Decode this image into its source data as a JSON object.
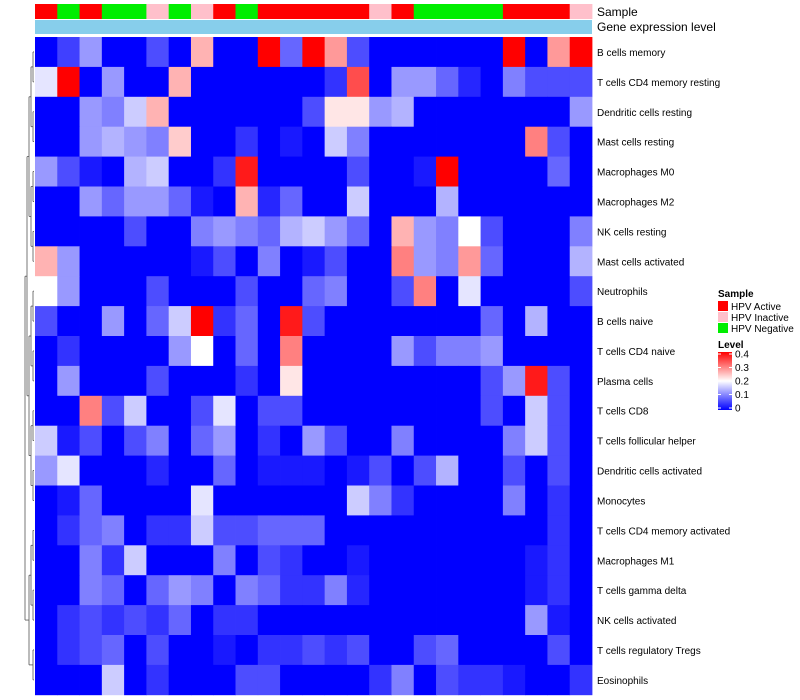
{
  "chart_data": {
    "type": "heatmap",
    "title": "",
    "annotation_tracks": [
      "Sample",
      "Gene expression level"
    ],
    "rows": [
      "B cells memory",
      "T cells CD4 memory resting",
      "Dendritic cells resting",
      "Mast cells resting",
      "Macrophages M0",
      "Macrophages M2",
      "NK cells resting",
      "Mast cells activated",
      "Neutrophils",
      "B cells naive",
      "T cells CD4 naive",
      "Plasma cells",
      "T cells CD8",
      "T cells follicular helper",
      "Dendritic cells activated",
      "Monocytes",
      "T cells CD4 memory activated",
      "Macrophages M1",
      "T cells gamma delta",
      "NK cells activated",
      "T cells regulatory  Tregs",
      "Eosinophils"
    ],
    "sample_groups": [
      "HPV Active",
      "HPV Negative",
      "HPV Active",
      "HPV Negative",
      "HPV Negative",
      "HPV Inactive",
      "HPV Negative",
      "HPV Inactive",
      "HPV Active",
      "HPV Negative",
      "HPV Active",
      "HPV Active",
      "HPV Active",
      "HPV Active",
      "HPV Active",
      "HPV Inactive",
      "HPV Active",
      "HPV Negative",
      "HPV Negative",
      "HPV Negative",
      "HPV Negative",
      "HPV Active",
      "HPV Active",
      "HPV Active",
      "HPV Inactive"
    ],
    "values": [
      [
        0.0,
        0.05,
        0.12,
        0.0,
        0.0,
        0.06,
        0.0,
        0.26,
        0.0,
        0.0,
        0.4,
        0.08,
        0.4,
        0.28,
        0.06,
        0.0,
        0.0,
        0.0,
        0.0,
        0.0,
        0.0,
        0.4,
        0.0,
        0.28,
        0.4
      ],
      [
        0.18,
        0.4,
        0.0,
        0.12,
        0.0,
        0.0,
        0.26,
        0.0,
        0.0,
        0.0,
        0.0,
        0.0,
        0.0,
        0.04,
        0.34,
        0.0,
        0.12,
        0.12,
        0.08,
        0.03,
        0.0,
        0.1,
        0.06,
        0.06,
        0.06
      ],
      [
        0.0,
        0.0,
        0.12,
        0.1,
        0.16,
        0.26,
        0.0,
        0.0,
        0.0,
        0.0,
        0.0,
        0.0,
        0.06,
        0.22,
        0.22,
        0.12,
        0.14,
        0.0,
        0.0,
        0.0,
        0.0,
        0.0,
        0.0,
        0.0,
        0.12
      ],
      [
        0.0,
        0.0,
        0.12,
        0.14,
        0.12,
        0.1,
        0.24,
        0.0,
        0.0,
        0.04,
        0.0,
        0.02,
        0.0,
        0.16,
        0.1,
        0.0,
        0.0,
        0.0,
        0.0,
        0.0,
        0.0,
        0.0,
        0.3,
        0.06,
        0.0
      ],
      [
        0.12,
        0.06,
        0.02,
        0.0,
        0.14,
        0.16,
        0.0,
        0.0,
        0.04,
        0.38,
        0.0,
        0.0,
        0.0,
        0.0,
        0.06,
        0.0,
        0.0,
        0.02,
        0.4,
        0.0,
        0.0,
        0.0,
        0.0,
        0.08,
        0.0
      ],
      [
        0.0,
        0.0,
        0.12,
        0.08,
        0.12,
        0.12,
        0.08,
        0.02,
        0.0,
        0.26,
        0.03,
        0.08,
        0.0,
        0.0,
        0.16,
        0.0,
        0.0,
        0.0,
        0.14,
        0.0,
        0.0,
        0.0,
        0.0,
        0.0,
        0.0
      ],
      [
        0.0,
        0.0,
        0.0,
        0.0,
        0.06,
        0.0,
        0.0,
        0.1,
        0.12,
        0.1,
        0.08,
        0.14,
        0.16,
        0.12,
        0.08,
        0.0,
        0.26,
        0.12,
        0.1,
        0.2,
        0.06,
        0.0,
        0.0,
        0.0,
        0.1
      ],
      [
        0.26,
        0.12,
        0.0,
        0.0,
        0.0,
        0.0,
        0.0,
        0.02,
        0.06,
        0.0,
        0.1,
        0.0,
        0.02,
        0.06,
        0.0,
        0.0,
        0.3,
        0.12,
        0.1,
        0.28,
        0.08,
        0.0,
        0.0,
        0.0,
        0.14
      ],
      [
        0.2,
        0.12,
        0.0,
        0.0,
        0.0,
        0.06,
        0.0,
        0.0,
        0.0,
        0.06,
        0.0,
        0.0,
        0.08,
        0.1,
        0.0,
        0.0,
        0.06,
        0.3,
        0.0,
        0.18,
        0.0,
        0.0,
        0.0,
        0.0,
        0.06
      ],
      [
        0.06,
        0.0,
        0.0,
        0.12,
        0.0,
        0.08,
        0.16,
        0.4,
        0.04,
        0.08,
        0.0,
        0.38,
        0.06,
        0.0,
        0.0,
        0.0,
        0.0,
        0.0,
        0.0,
        0.0,
        0.08,
        0.0,
        0.14,
        0.0,
        0.0
      ],
      [
        0.0,
        0.04,
        0.0,
        0.0,
        0.0,
        0.0,
        0.12,
        0.2,
        0.0,
        0.08,
        0.0,
        0.3,
        0.0,
        0.0,
        0.0,
        0.0,
        0.12,
        0.06,
        0.1,
        0.1,
        0.12,
        0.0,
        0.0,
        0.0,
        0.0
      ],
      [
        0.0,
        0.12,
        0.0,
        0.0,
        0.0,
        0.06,
        0.0,
        0.0,
        0.0,
        0.04,
        0.0,
        0.22,
        0.0,
        0.0,
        0.0,
        0.0,
        0.0,
        0.0,
        0.0,
        0.0,
        0.06,
        0.12,
        0.38,
        0.06,
        0.0
      ],
      [
        0.0,
        0.0,
        0.3,
        0.06,
        0.16,
        0.0,
        0.0,
        0.06,
        0.18,
        0.0,
        0.06,
        0.06,
        0.0,
        0.0,
        0.0,
        0.0,
        0.0,
        0.0,
        0.0,
        0.0,
        0.06,
        0.0,
        0.16,
        0.06,
        0.0
      ],
      [
        0.16,
        0.02,
        0.06,
        0.0,
        0.06,
        0.1,
        0.0,
        0.08,
        0.12,
        0.0,
        0.04,
        0.0,
        0.12,
        0.06,
        0.0,
        0.0,
        0.1,
        0.0,
        0.0,
        0.0,
        0.0,
        0.1,
        0.16,
        0.06,
        0.0
      ],
      [
        0.12,
        0.18,
        0.0,
        0.0,
        0.0,
        0.03,
        0.0,
        0.0,
        0.08,
        0.0,
        0.02,
        0.02,
        0.02,
        0.0,
        0.02,
        0.06,
        0.0,
        0.06,
        0.14,
        0.0,
        0.0,
        0.06,
        0.0,
        0.06,
        0.0
      ],
      [
        0.0,
        0.02,
        0.08,
        0.0,
        0.0,
        0.0,
        0.0,
        0.18,
        0.0,
        0.0,
        0.0,
        0.0,
        0.0,
        0.0,
        0.16,
        0.1,
        0.04,
        0.0,
        0.0,
        0.0,
        0.0,
        0.1,
        0.0,
        0.04,
        0.0
      ],
      [
        0.0,
        0.04,
        0.08,
        0.1,
        0.0,
        0.04,
        0.04,
        0.16,
        0.06,
        0.06,
        0.08,
        0.08,
        0.08,
        0.0,
        0.0,
        0.0,
        0.0,
        0.0,
        0.0,
        0.0,
        0.0,
        0.0,
        0.0,
        0.04,
        0.0
      ],
      [
        0.0,
        0.0,
        0.1,
        0.04,
        0.16,
        0.0,
        0.0,
        0.0,
        0.1,
        0.0,
        0.06,
        0.04,
        0.0,
        0.0,
        0.02,
        0.0,
        0.0,
        0.0,
        0.0,
        0.0,
        0.0,
        0.0,
        0.02,
        0.04,
        0.0
      ],
      [
        0.0,
        0.0,
        0.1,
        0.08,
        0.0,
        0.08,
        0.12,
        0.1,
        0.0,
        0.1,
        0.08,
        0.04,
        0.04,
        0.1,
        0.03,
        0.0,
        0.0,
        0.0,
        0.0,
        0.0,
        0.0,
        0.0,
        0.02,
        0.04,
        0.0
      ],
      [
        0.0,
        0.04,
        0.06,
        0.04,
        0.06,
        0.04,
        0.08,
        0.0,
        0.04,
        0.04,
        0.0,
        0.0,
        0.0,
        0.0,
        0.0,
        0.0,
        0.0,
        0.0,
        0.0,
        0.0,
        0.0,
        0.0,
        0.12,
        0.02,
        0.0
      ],
      [
        0.0,
        0.04,
        0.06,
        0.08,
        0.0,
        0.06,
        0.0,
        0.0,
        0.02,
        0.0,
        0.04,
        0.04,
        0.06,
        0.04,
        0.06,
        0.0,
        0.0,
        0.06,
        0.08,
        0.0,
        0.0,
        0.0,
        0.0,
        0.06,
        0.0
      ],
      [
        0.0,
        0.0,
        0.0,
        0.16,
        0.0,
        0.04,
        0.0,
        0.0,
        0.0,
        0.06,
        0.06,
        0.0,
        0.0,
        0.0,
        0.0,
        0.04,
        0.1,
        0.0,
        0.06,
        0.04,
        0.04,
        0.02,
        0.0,
        0.0,
        0.04
      ]
    ],
    "scale_range": [
      0,
      0.4
    ],
    "legend": {
      "sample_title": "Sample",
      "sample_entries": [
        {
          "label": "HPV Active",
          "color": "#ff0000"
        },
        {
          "label": "HPV Inactive",
          "color": "#ffc0cb"
        },
        {
          "label": "HPV Negative",
          "color": "#00ee00"
        }
      ],
      "level_title": "Level",
      "level_ticks": [
        {
          "label": "0.4",
          "value": 0.4
        },
        {
          "label": "0.3",
          "value": 0.3
        },
        {
          "label": "0.2",
          "value": 0.2
        },
        {
          "label": "0.1",
          "value": 0.1
        },
        {
          "label": "0",
          "value": 0
        }
      ]
    },
    "colors": {
      "low": "#0000ff",
      "mid": "#ffffff",
      "high": "#ff0000",
      "expression_track": "#87ceeb",
      "dendrogram": "#555555"
    }
  }
}
